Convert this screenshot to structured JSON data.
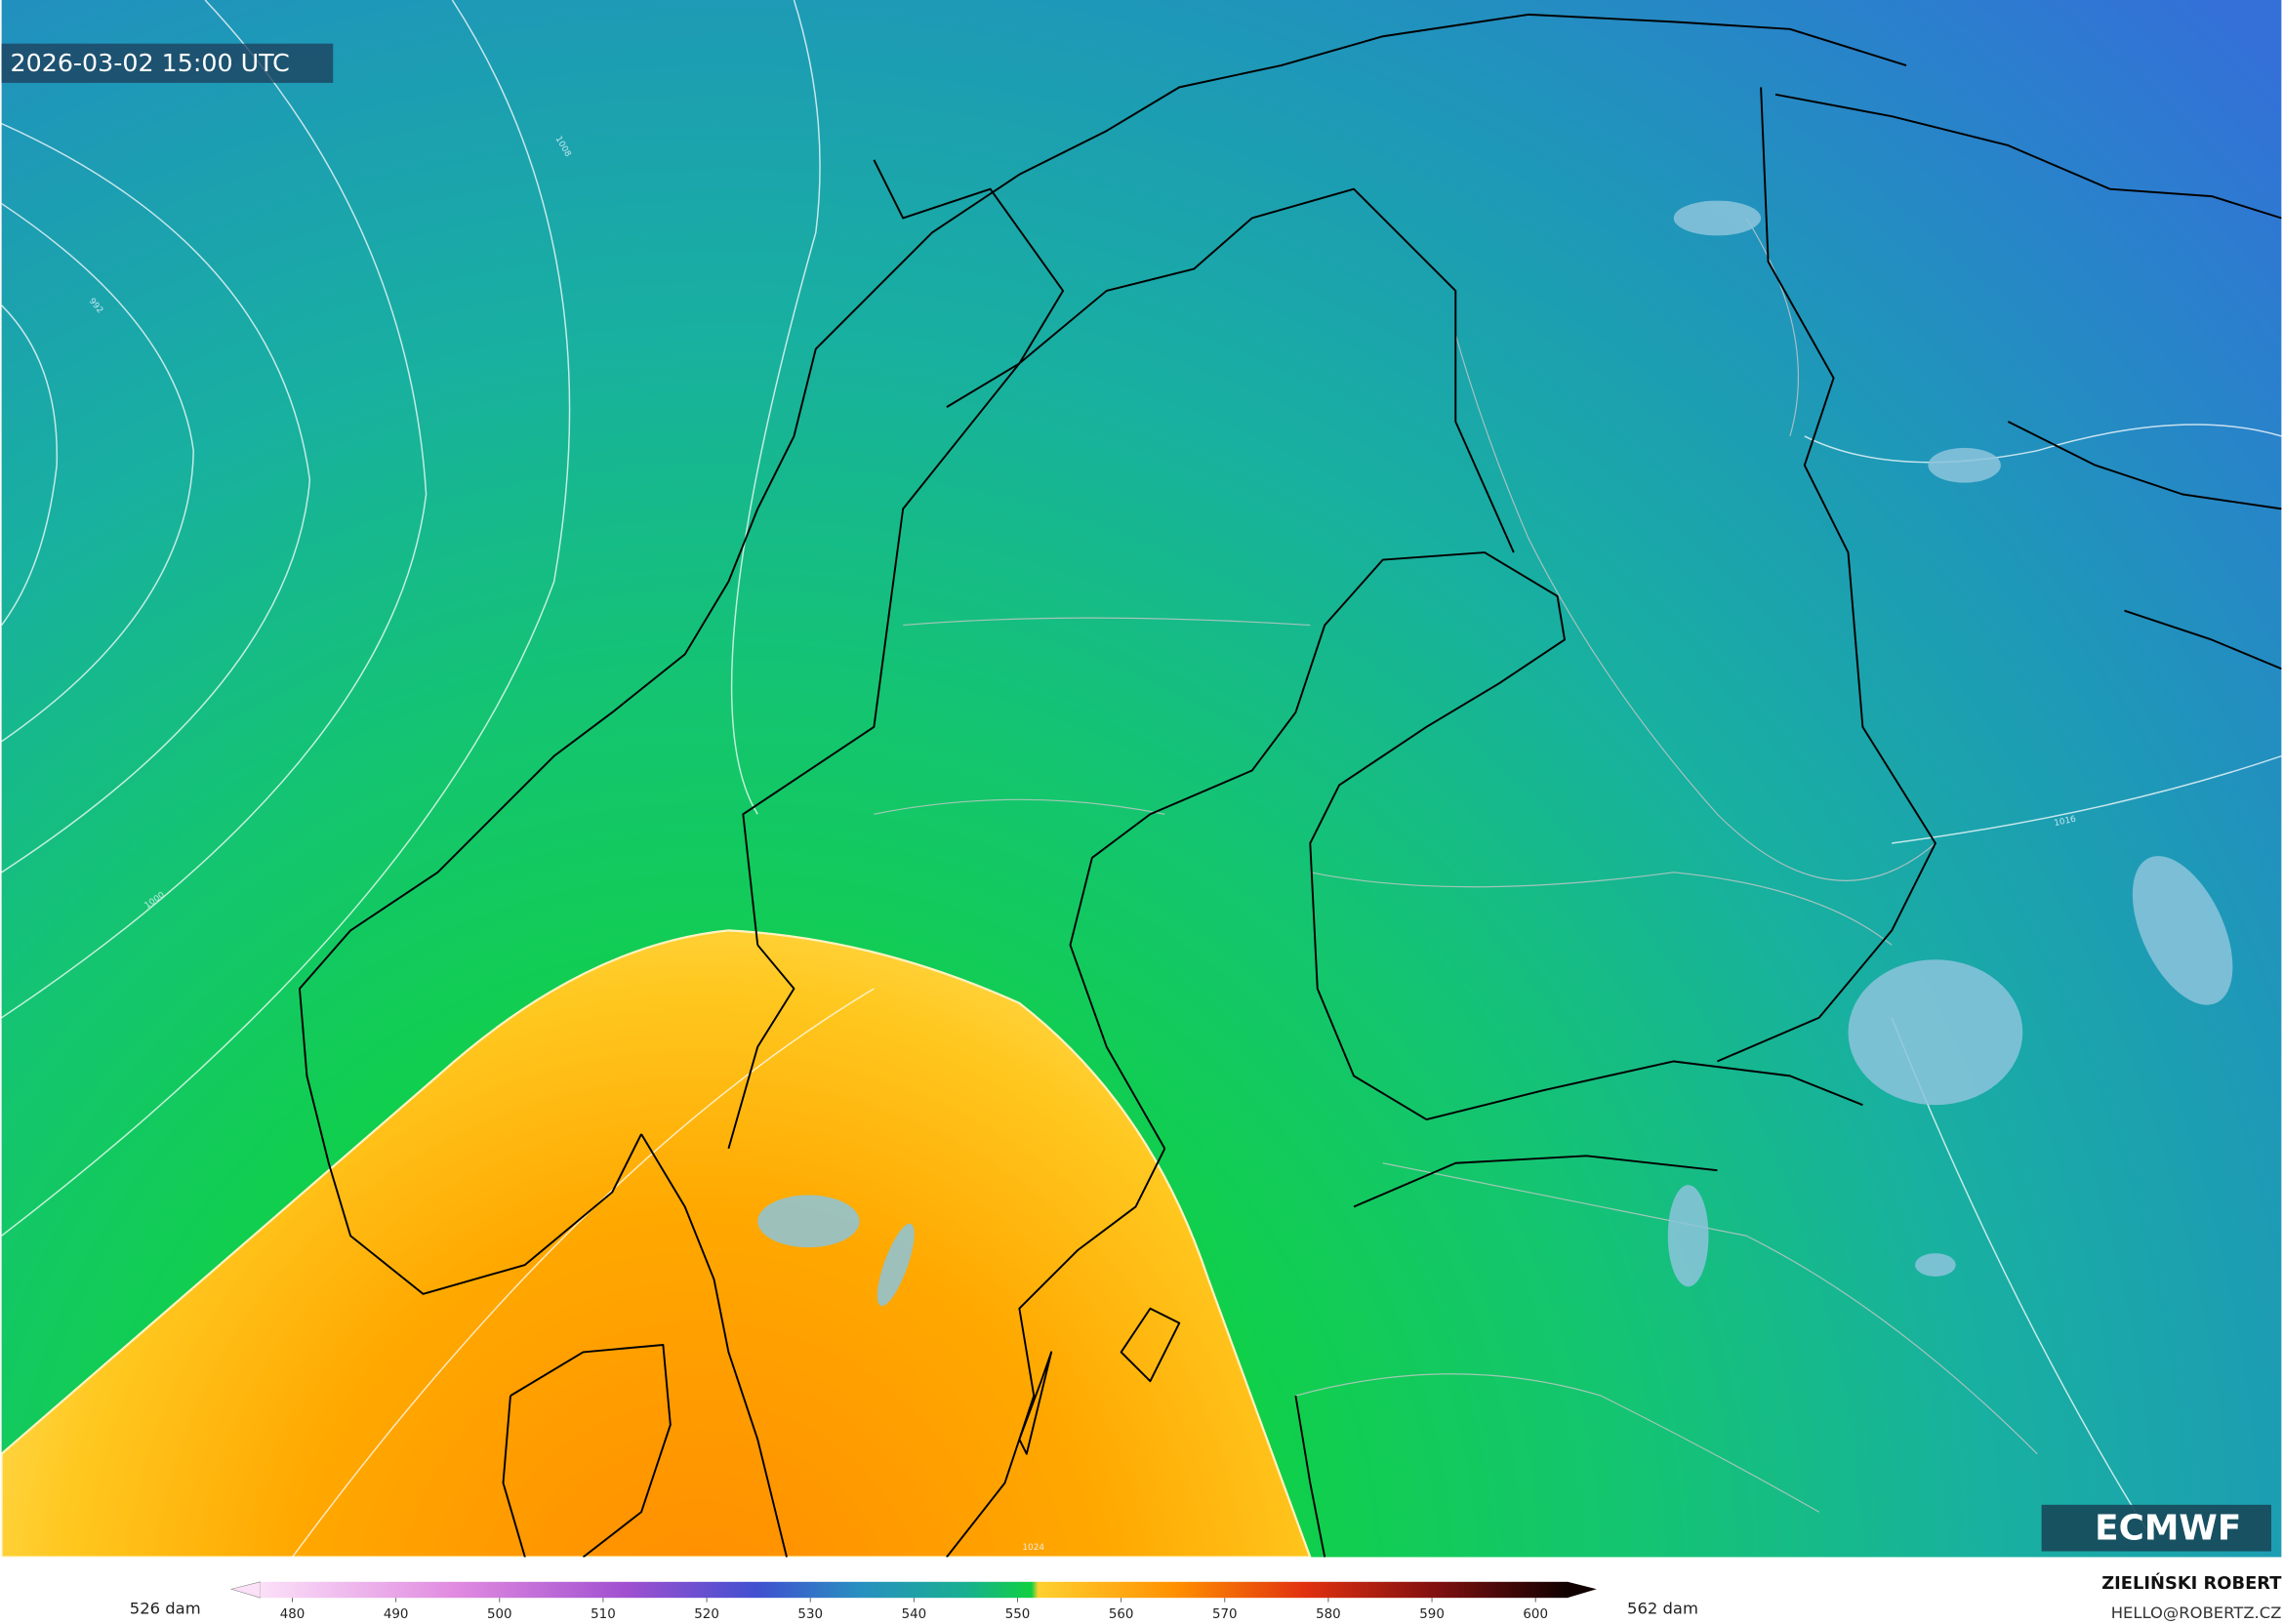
{
  "header": {
    "timestamp": "2026-03-02 15:00 UTC"
  },
  "map": {
    "isobar_labels": [
      "1008",
      "992",
      "1000",
      "1016",
      "1024"
    ]
  },
  "logo": {
    "text": "ECMWF"
  },
  "colorbar": {
    "min_label": "526 dam",
    "max_label": "562 dam",
    "ticks": [
      480,
      490,
      500,
      510,
      520,
      530,
      540,
      550,
      560,
      570,
      580,
      590,
      600
    ]
  },
  "credit": {
    "name": "ZIELIŃSKI ROBERT",
    "email": "HELLO@ROBERTZ.CZ"
  }
}
